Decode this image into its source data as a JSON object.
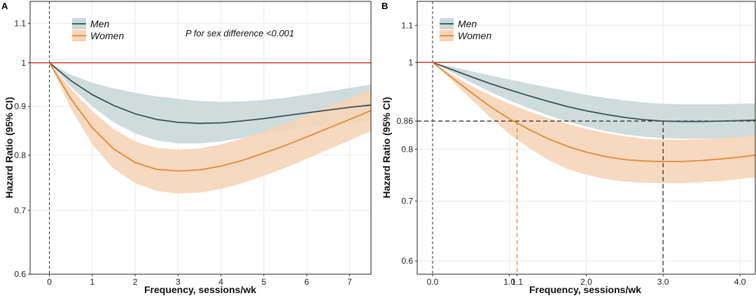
{
  "colors": {
    "men_line": "#3d4f55",
    "men_band": "#c9d8d8",
    "women_line": "#e08a3c",
    "women_band": "#f6d5b8",
    "reference": "#c9402f",
    "grid": "#ebebeb",
    "ref_dash": "#333333"
  },
  "chart_data": [
    {
      "panel": "A",
      "type": "line",
      "title": "",
      "xlabel": "Frequency, sessions/wk",
      "ylabel": "Hazard Ratio (95% CI)",
      "scale_y": "log",
      "xlim": [
        -0.45,
        7.5
      ],
      "ylim": [
        0.6,
        1.16
      ],
      "x_ticks": [
        0,
        1,
        2,
        3,
        4,
        5,
        6,
        7
      ],
      "x_tick_labels": [
        "0",
        "1",
        "2",
        "3",
        "4",
        "5",
        "6",
        "7"
      ],
      "y_ticks": [
        0.6,
        0.7,
        0.8,
        0.9,
        1.0,
        1.1
      ],
      "y_tick_labels": [
        "0.6",
        "0.7",
        "0.8",
        "0.9",
        "1",
        "1.1"
      ],
      "reference_line_y": 1.0,
      "vertical_dashed_x": [
        0
      ],
      "legend": {
        "position": "top-left",
        "entries": [
          "Men",
          "Women"
        ]
      },
      "annotation": "P for sex difference <0.001",
      "series": [
        {
          "name": "Men",
          "x": [
            0,
            0.5,
            1,
            1.5,
            2,
            2.5,
            3,
            3.5,
            4,
            4.5,
            5,
            5.5,
            6,
            6.5,
            7,
            7.5
          ],
          "y": [
            1.0,
            0.958,
            0.926,
            0.902,
            0.884,
            0.872,
            0.866,
            0.864,
            0.865,
            0.869,
            0.874,
            0.88,
            0.886,
            0.892,
            0.898,
            0.903
          ],
          "lower": [
            1.0,
            0.944,
            0.9,
            0.866,
            0.843,
            0.829,
            0.823,
            0.823,
            0.827,
            0.834,
            0.842,
            0.849,
            0.855,
            0.86,
            0.864,
            0.867
          ],
          "upper": [
            1.0,
            0.972,
            0.953,
            0.94,
            0.93,
            0.922,
            0.917,
            0.912,
            0.91,
            0.911,
            0.914,
            0.919,
            0.926,
            0.933,
            0.941,
            0.949
          ]
        },
        {
          "name": "Women",
          "x": [
            0,
            0.5,
            1,
            1.5,
            2,
            2.5,
            3,
            3.5,
            4,
            4.5,
            5,
            5.5,
            6,
            6.5,
            7,
            7.5
          ],
          "y": [
            1.0,
            0.917,
            0.855,
            0.812,
            0.786,
            0.773,
            0.77,
            0.772,
            0.779,
            0.79,
            0.804,
            0.819,
            0.836,
            0.854,
            0.872,
            0.891
          ],
          "lower": [
            1.0,
            0.895,
            0.821,
            0.774,
            0.748,
            0.734,
            0.729,
            0.731,
            0.737,
            0.748,
            0.761,
            0.776,
            0.793,
            0.811,
            0.829,
            0.848
          ],
          "upper": [
            1.0,
            0.939,
            0.89,
            0.852,
            0.827,
            0.814,
            0.811,
            0.813,
            0.821,
            0.833,
            0.848,
            0.864,
            0.882,
            0.9,
            0.918,
            0.937
          ]
        }
      ]
    },
    {
      "panel": "B",
      "type": "line",
      "title": "",
      "xlabel": "Frequency, sessions/wk",
      "ylabel": "Hazard Ratio (95% CI)",
      "scale_y": "log",
      "xlim": [
        -0.2,
        4.2
      ],
      "ylim": [
        0.58,
        1.17
      ],
      "x_ticks": [
        0.0,
        1.0,
        1.1,
        2.0,
        3.0,
        4.0
      ],
      "x_tick_labels": [
        "0.0",
        "1.0",
        "1.1",
        "2.0",
        "3.0",
        "4.0"
      ],
      "y_ticks": [
        0.6,
        0.7,
        0.8,
        0.86,
        1.0,
        1.1
      ],
      "y_tick_labels": [
        "0.6",
        "0.7",
        "0.8",
        "0.86",
        "1",
        "1.1"
      ],
      "reference_line_y": 1.0,
      "vertical_dashed_x": [
        0
      ],
      "reference_hr": 0.86,
      "women_threshold_x": 1.1,
      "men_threshold_x": 3.0,
      "legend": {
        "position": "top-left",
        "entries": [
          "Men",
          "Women"
        ]
      },
      "series": [
        {
          "name": "Men",
          "x": [
            0,
            0.25,
            0.5,
            0.75,
            1.0,
            1.25,
            1.5,
            1.75,
            2.0,
            2.25,
            2.5,
            2.75,
            3.0,
            3.25,
            3.5,
            3.75,
            4.0,
            4.2
          ],
          "y": [
            1.0,
            0.982,
            0.964,
            0.947,
            0.932,
            0.918,
            0.905,
            0.893,
            0.883,
            0.875,
            0.868,
            0.863,
            0.86,
            0.859,
            0.859,
            0.86,
            0.861,
            0.862
          ],
          "lower": [
            1.0,
            0.975,
            0.95,
            0.927,
            0.907,
            0.889,
            0.873,
            0.859,
            0.848,
            0.838,
            0.831,
            0.826,
            0.823,
            0.822,
            0.822,
            0.823,
            0.825,
            0.826
          ],
          "upper": [
            1.0,
            0.989,
            0.978,
            0.967,
            0.957,
            0.947,
            0.938,
            0.929,
            0.92,
            0.913,
            0.907,
            0.902,
            0.899,
            0.898,
            0.898,
            0.898,
            0.899,
            0.9
          ]
        },
        {
          "name": "Women",
          "x": [
            0,
            0.25,
            0.5,
            0.75,
            1.0,
            1.25,
            1.5,
            1.75,
            2.0,
            2.25,
            2.5,
            2.75,
            3.0,
            3.25,
            3.5,
            3.75,
            4.0,
            4.2
          ],
          "y": [
            1.0,
            0.962,
            0.926,
            0.893,
            0.865,
            0.842,
            0.822,
            0.806,
            0.794,
            0.785,
            0.779,
            0.776,
            0.775,
            0.775,
            0.777,
            0.78,
            0.784,
            0.788
          ],
          "lower": [
            1.0,
            0.955,
            0.91,
            0.868,
            0.832,
            0.803,
            0.779,
            0.761,
            0.749,
            0.741,
            0.736,
            0.734,
            0.733,
            0.733,
            0.735,
            0.737,
            0.741,
            0.744
          ],
          "upper": [
            1.0,
            0.969,
            0.942,
            0.919,
            0.899,
            0.882,
            0.867,
            0.854,
            0.843,
            0.834,
            0.827,
            0.822,
            0.82,
            0.82,
            0.821,
            0.823,
            0.826,
            0.83
          ]
        }
      ]
    }
  ]
}
